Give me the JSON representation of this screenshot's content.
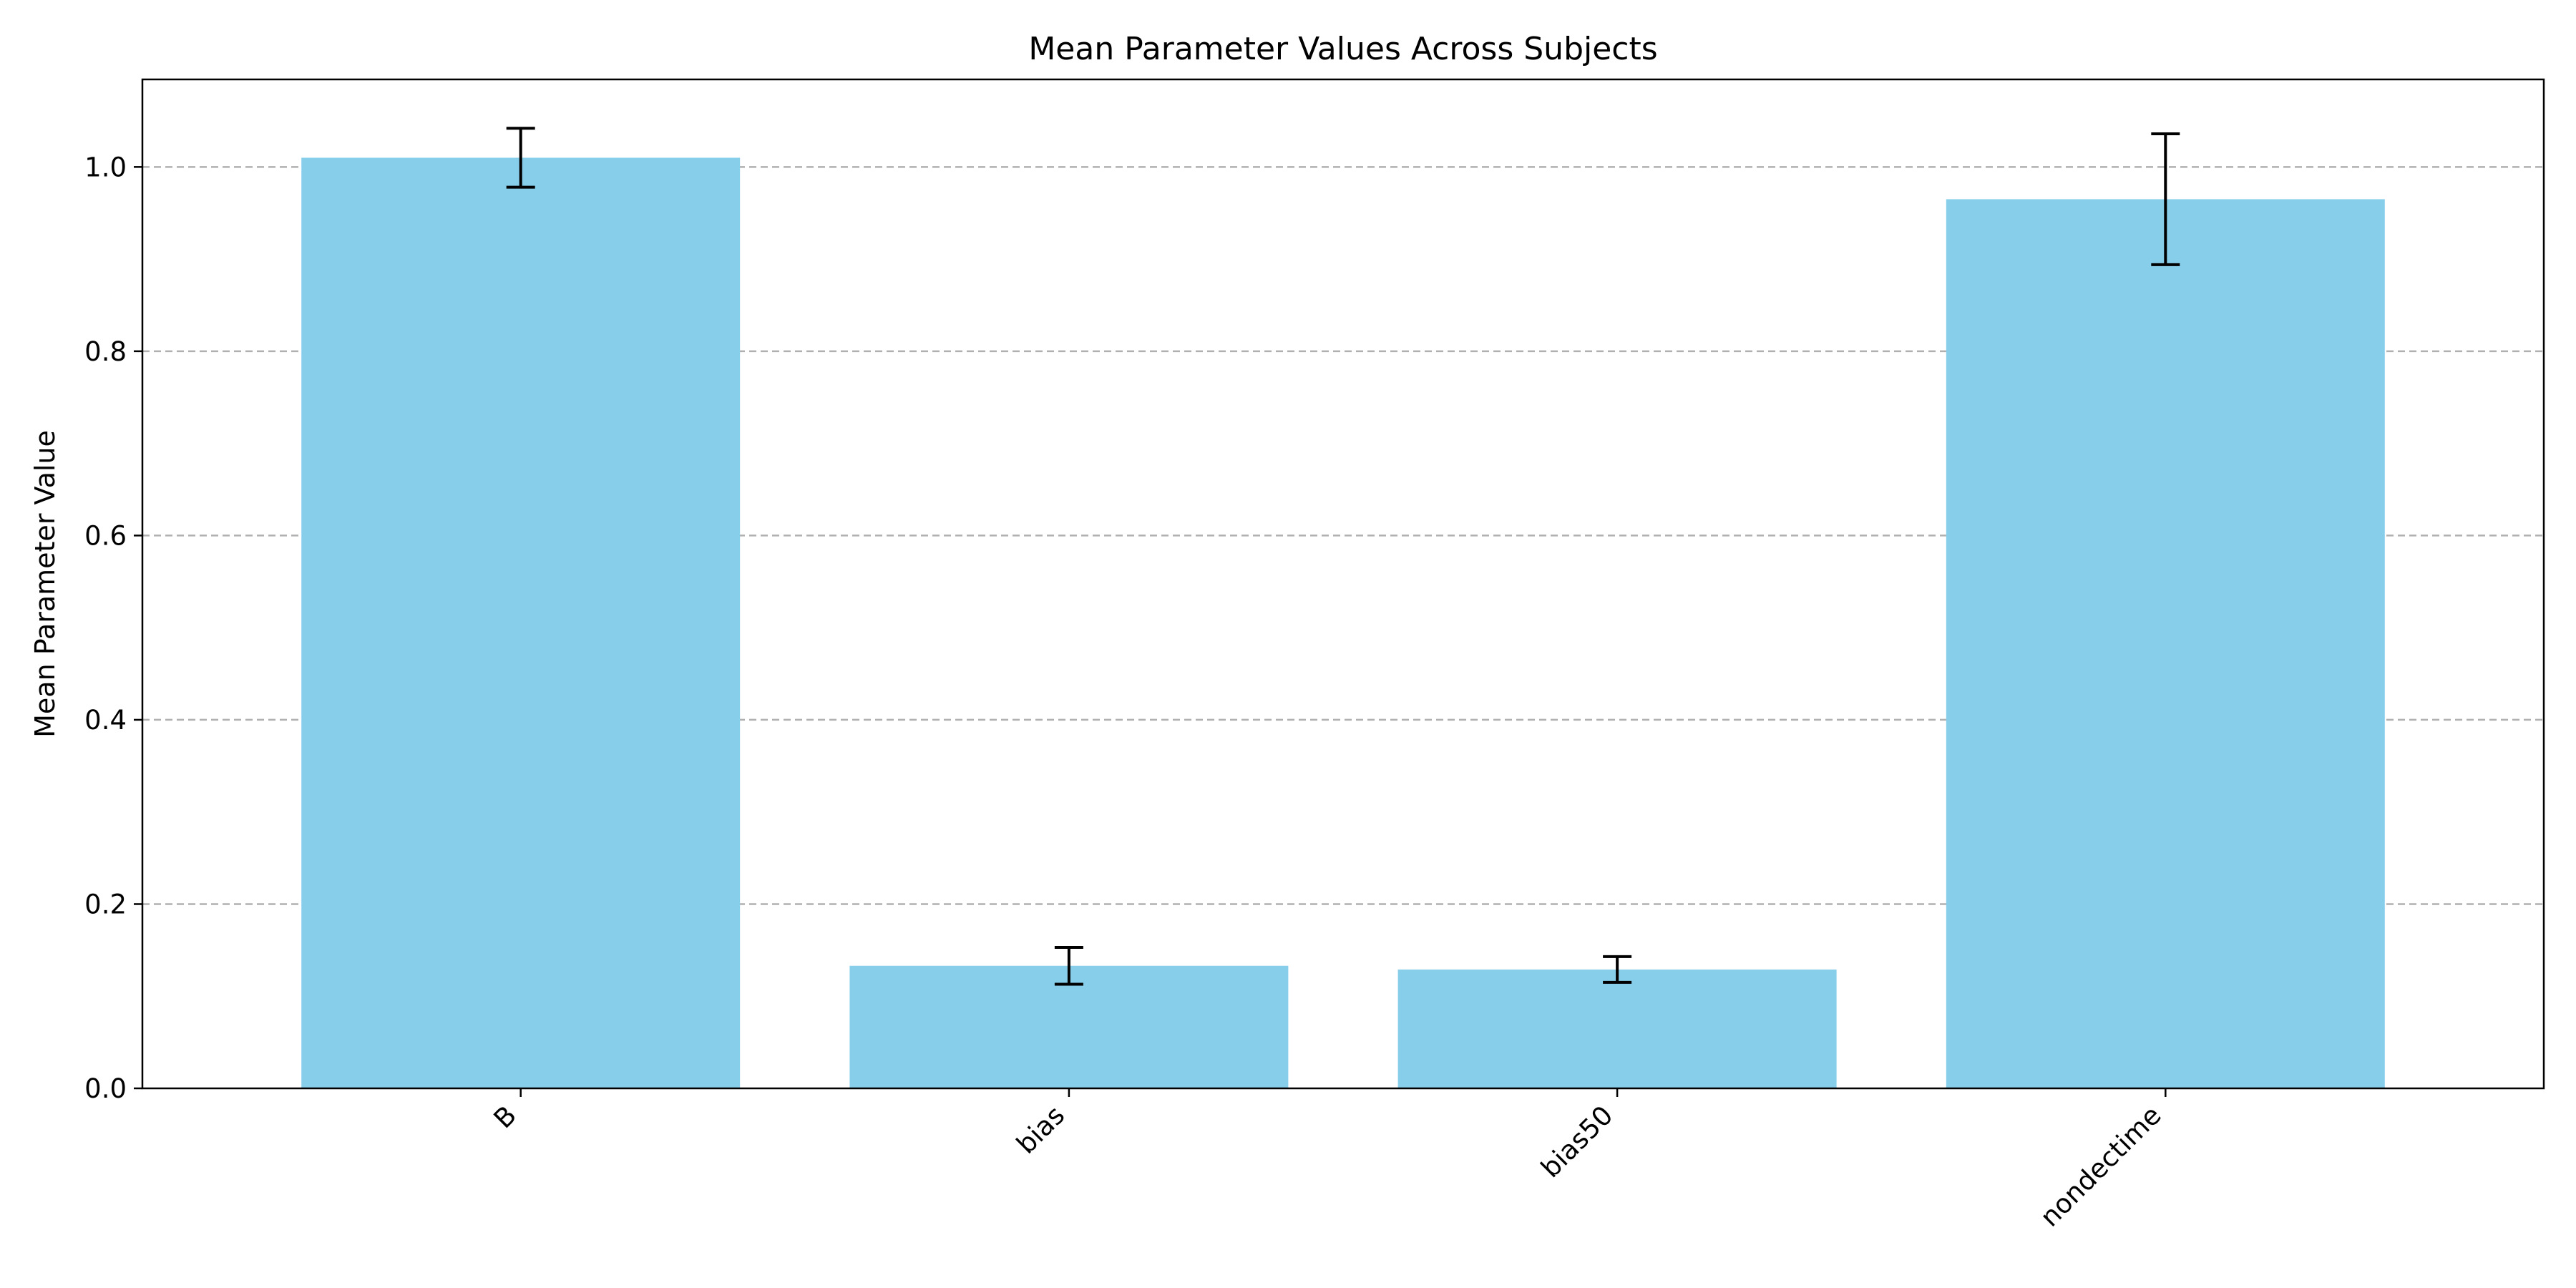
{
  "chart_data": {
    "type": "bar",
    "title": "Mean Parameter Values Across Subjects",
    "xlabel": "",
    "ylabel": "Mean Parameter Value",
    "categories": [
      "B",
      "bias",
      "bias50",
      "nondectime"
    ],
    "values": [
      1.01,
      0.133,
      0.129,
      0.965
    ],
    "errors": [
      0.032,
      0.02,
      0.014,
      0.071
    ],
    "ylim": [
      0,
      1.095
    ],
    "yticks": [
      "0.0",
      "0.2",
      "0.4",
      "0.6",
      "0.8",
      "1.0"
    ],
    "ytick_values": [
      0,
      0.2,
      0.4,
      0.6,
      0.8,
      1.0
    ],
    "grid": "y-dashed",
    "bar_color": "#87CEEB",
    "error_color": "#000000"
  }
}
